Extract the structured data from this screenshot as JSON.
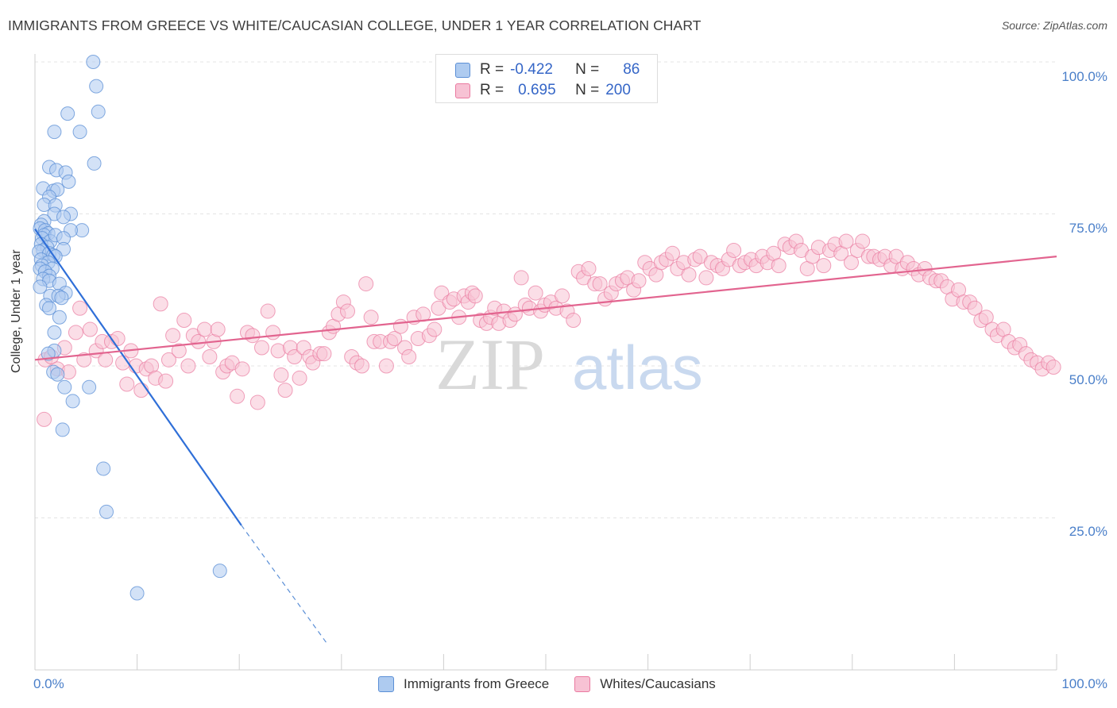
{
  "title": "IMMIGRANTS FROM GREECE VS WHITE/CAUCASIAN COLLEGE, UNDER 1 YEAR CORRELATION CHART",
  "source": "Source: ZipAtlas.com",
  "watermark": {
    "zip": "ZIP",
    "atlas": "atlas"
  },
  "colors": {
    "blue": "#5b8fd6",
    "blue_fill": "#aecbf0",
    "pink": "#ea7aa0",
    "pink_fill": "#f7c2d4",
    "tick_text": "#4a7fc9"
  },
  "stats": {
    "row1": {
      "r_label": "R =",
      "r_value": "-0.422",
      "n_label": "N =",
      "n_value": "86"
    },
    "row2": {
      "r_label": "R =",
      "r_value": "0.695",
      "n_label": "N =",
      "n_value": "200"
    }
  },
  "legend": {
    "series1": "Immigrants from Greece",
    "series2": "Whites/Caucasians"
  },
  "chart_data": {
    "type": "scatter",
    "title": "IMMIGRANTS FROM GREECE VS WHITE/CAUCASIAN COLLEGE, UNDER 1 YEAR CORRELATION CHART",
    "xlabel": "",
    "ylabel": "College, Under 1 year",
    "xlim": [
      0,
      100
    ],
    "ylim": [
      0,
      100
    ],
    "x_ticks": [
      "0.0%",
      "100.0%"
    ],
    "y_ticks": [
      "100.0%",
      "75.0%",
      "50.0%",
      "25.0%"
    ],
    "y_tick_values": [
      100,
      75,
      50,
      25
    ],
    "grid": true,
    "legend_position": "bottom",
    "series": [
      {
        "name": "Immigrants from Greece",
        "color": "#5b8fd6",
        "r": -0.422,
        "n": 86,
        "trend": {
          "x": [
            0,
            20.2,
            28.6
          ],
          "y": [
            72.5,
            23.8,
            4.3
          ],
          "solid_until_x": 20.2
        },
        "points": [
          [
            5.7,
            100
          ],
          [
            6.0,
            96.0
          ],
          [
            6.2,
            91.8
          ],
          [
            3.2,
            91.5
          ],
          [
            1.9,
            88.5
          ],
          [
            4.4,
            88.5
          ],
          [
            5.8,
            83.3
          ],
          [
            1.4,
            82.7
          ],
          [
            2.1,
            82.2
          ],
          [
            3.0,
            81.8
          ],
          [
            3.3,
            80.3
          ],
          [
            0.8,
            79.2
          ],
          [
            1.8,
            78.8
          ],
          [
            2.2,
            79.0
          ],
          [
            1.4,
            77.8
          ],
          [
            0.9,
            76.5
          ],
          [
            2.0,
            76.4
          ],
          [
            1.9,
            75.0
          ],
          [
            3.5,
            75.0
          ],
          [
            2.8,
            74.5
          ],
          [
            0.9,
            73.8
          ],
          [
            0.6,
            73.2
          ],
          [
            0.5,
            72.6
          ],
          [
            1.0,
            72.3
          ],
          [
            1.3,
            71.8
          ],
          [
            0.9,
            71.5
          ],
          [
            4.6,
            72.3
          ],
          [
            3.5,
            72.3
          ],
          [
            0.7,
            71.0
          ],
          [
            1.5,
            70.5
          ],
          [
            2.0,
            71.5
          ],
          [
            2.8,
            71.0
          ],
          [
            0.6,
            70.0
          ],
          [
            1.2,
            69.5
          ],
          [
            0.8,
            69.0
          ],
          [
            0.4,
            68.8
          ],
          [
            2.8,
            69.2
          ],
          [
            1.4,
            68.5
          ],
          [
            1.8,
            68.2
          ],
          [
            2.0,
            68.0
          ],
          [
            0.6,
            67.5
          ],
          [
            1.3,
            67.0
          ],
          [
            0.7,
            66.5
          ],
          [
            0.5,
            66.0
          ],
          [
            1.7,
            66.0
          ],
          [
            1.0,
            65.5
          ],
          [
            1.4,
            64.8
          ],
          [
            0.8,
            64.3
          ],
          [
            1.4,
            64.0
          ],
          [
            2.4,
            63.5
          ],
          [
            0.5,
            63.0
          ],
          [
            3.0,
            62.0
          ],
          [
            1.5,
            61.5
          ],
          [
            2.3,
            61.5
          ],
          [
            2.6,
            61.2
          ],
          [
            1.1,
            60.0
          ],
          [
            1.4,
            59.5
          ],
          [
            2.4,
            58.0
          ],
          [
            1.9,
            55.5
          ],
          [
            1.9,
            52.5
          ],
          [
            1.3,
            52.0
          ],
          [
            1.8,
            49.0
          ],
          [
            2.2,
            48.6
          ],
          [
            2.9,
            46.5
          ],
          [
            5.3,
            46.5
          ],
          [
            3.7,
            44.2
          ],
          [
            2.7,
            39.5
          ],
          [
            6.7,
            33.1
          ],
          [
            7.0,
            26.0
          ],
          [
            18.1,
            16.3
          ],
          [
            10.0,
            12.6
          ]
        ]
      },
      {
        "name": "Whites/Caucasians",
        "color": "#ea7aa0",
        "r": 0.695,
        "n": 200,
        "trend": {
          "x": [
            0,
            100
          ],
          "y": [
            51.0,
            68.0
          ]
        },
        "points": [
          [
            0.9,
            41.2
          ],
          [
            1.0,
            51.0
          ],
          [
            1.6,
            51.5
          ],
          [
            2.2,
            49.5
          ],
          [
            2.9,
            53.0
          ],
          [
            3.3,
            49.0
          ],
          [
            4.0,
            55.5
          ],
          [
            4.4,
            59.5
          ],
          [
            4.8,
            51.0
          ],
          [
            5.4,
            56.0
          ],
          [
            6.0,
            52.5
          ],
          [
            6.6,
            54.0
          ],
          [
            6.9,
            51.0
          ],
          [
            7.5,
            54.0
          ],
          [
            8.1,
            54.5
          ],
          [
            8.6,
            50.5
          ],
          [
            9.0,
            47.0
          ],
          [
            9.4,
            52.5
          ],
          [
            9.9,
            50.0
          ],
          [
            10.4,
            46.0
          ],
          [
            10.9,
            49.5
          ],
          [
            11.4,
            50.0
          ],
          [
            11.8,
            48.0
          ],
          [
            12.3,
            60.2
          ],
          [
            12.8,
            47.5
          ],
          [
            13.1,
            51.0
          ],
          [
            13.5,
            55.0
          ],
          [
            14.1,
            52.5
          ],
          [
            14.6,
            57.5
          ],
          [
            15.0,
            50.0
          ],
          [
            15.5,
            55.0
          ],
          [
            16.0,
            54.0
          ],
          [
            16.6,
            56.0
          ],
          [
            17.1,
            51.5
          ],
          [
            17.5,
            54.0
          ],
          [
            17.9,
            56.0
          ],
          [
            18.4,
            49.0
          ],
          [
            18.8,
            50.0
          ],
          [
            19.3,
            50.5
          ],
          [
            19.8,
            45.0
          ],
          [
            20.3,
            49.5
          ],
          [
            20.8,
            55.5
          ],
          [
            21.3,
            55.0
          ],
          [
            21.8,
            44.0
          ],
          [
            22.2,
            53.0
          ],
          [
            22.8,
            59.0
          ],
          [
            23.3,
            55.5
          ],
          [
            23.8,
            52.5
          ],
          [
            24.1,
            48.5
          ],
          [
            24.5,
            46.0
          ],
          [
            25.0,
            53.0
          ],
          [
            25.4,
            51.5
          ],
          [
            25.9,
            48.0
          ],
          [
            26.3,
            53.0
          ],
          [
            26.9,
            51.5
          ],
          [
            27.2,
            50.5
          ],
          [
            27.9,
            52.0
          ],
          [
            28.3,
            52.0
          ],
          [
            28.8,
            55.5
          ],
          [
            29.2,
            56.5
          ],
          [
            29.7,
            58.5
          ],
          [
            30.2,
            60.5
          ],
          [
            30.6,
            59.0
          ],
          [
            31.0,
            51.5
          ],
          [
            31.5,
            50.5
          ],
          [
            32.0,
            50.0
          ],
          [
            32.4,
            63.5
          ],
          [
            32.9,
            58.0
          ],
          [
            33.2,
            54.0
          ],
          [
            33.8,
            54.0
          ],
          [
            34.4,
            50.0
          ],
          [
            34.8,
            54.0
          ],
          [
            35.2,
            54.5
          ],
          [
            35.8,
            56.5
          ],
          [
            36.2,
            53.0
          ],
          [
            36.6,
            51.5
          ],
          [
            37.1,
            58.0
          ],
          [
            37.5,
            54.5
          ],
          [
            38.0,
            58.5
          ],
          [
            38.6,
            55.0
          ],
          [
            39.1,
            56.0
          ],
          [
            39.5,
            59.5
          ],
          [
            39.8,
            62.0
          ],
          [
            40.6,
            60.5
          ],
          [
            41.0,
            61.0
          ],
          [
            41.5,
            58.0
          ],
          [
            42.0,
            61.5
          ],
          [
            42.4,
            60.5
          ],
          [
            42.8,
            62.0
          ],
          [
            43.1,
            61.5
          ],
          [
            43.6,
            57.5
          ],
          [
            44.2,
            57.0
          ],
          [
            44.6,
            58.0
          ],
          [
            45.0,
            59.5
          ],
          [
            45.4,
            57.0
          ],
          [
            45.9,
            59.0
          ],
          [
            46.5,
            57.5
          ],
          [
            47.0,
            58.5
          ],
          [
            47.6,
            64.5
          ],
          [
            48.0,
            60.0
          ],
          [
            48.4,
            59.5
          ],
          [
            49.0,
            62.0
          ],
          [
            49.5,
            59.0
          ],
          [
            49.9,
            60.0
          ],
          [
            50.5,
            60.5
          ],
          [
            51.0,
            59.5
          ],
          [
            51.6,
            61.5
          ],
          [
            52.1,
            59.0
          ],
          [
            52.7,
            57.5
          ],
          [
            53.2,
            65.5
          ],
          [
            53.7,
            64.5
          ],
          [
            54.2,
            66.0
          ],
          [
            54.8,
            63.5
          ],
          [
            55.3,
            63.5
          ],
          [
            55.8,
            61.0
          ],
          [
            56.4,
            62.0
          ],
          [
            56.9,
            63.5
          ],
          [
            57.5,
            64.0
          ],
          [
            58.0,
            64.5
          ],
          [
            58.6,
            62.5
          ],
          [
            59.1,
            64.0
          ],
          [
            59.7,
            67.0
          ],
          [
            60.2,
            66.0
          ],
          [
            60.8,
            65.0
          ],
          [
            61.3,
            67.0
          ],
          [
            61.8,
            67.5
          ],
          [
            62.4,
            68.5
          ],
          [
            62.9,
            66.0
          ],
          [
            63.5,
            67.0
          ],
          [
            64.0,
            65.0
          ],
          [
            64.6,
            67.5
          ],
          [
            65.1,
            68.0
          ],
          [
            65.7,
            64.5
          ],
          [
            66.2,
            67.0
          ],
          [
            66.8,
            66.5
          ],
          [
            67.3,
            66.0
          ],
          [
            67.9,
            67.5
          ],
          [
            68.4,
            69.0
          ],
          [
            69.0,
            66.5
          ],
          [
            69.5,
            67.0
          ],
          [
            70.1,
            67.5
          ],
          [
            70.6,
            66.5
          ],
          [
            71.2,
            68.0
          ],
          [
            71.7,
            67.0
          ],
          [
            72.3,
            68.5
          ],
          [
            72.8,
            66.5
          ],
          [
            73.4,
            70.0
          ],
          [
            73.9,
            69.5
          ],
          [
            74.5,
            70.5
          ],
          [
            75.0,
            69.0
          ],
          [
            75.6,
            66.0
          ],
          [
            76.1,
            68.0
          ],
          [
            76.7,
            69.5
          ],
          [
            77.2,
            66.5
          ],
          [
            77.8,
            69.0
          ],
          [
            78.3,
            70.0
          ],
          [
            78.9,
            68.5
          ],
          [
            79.4,
            70.5
          ],
          [
            79.9,
            67.0
          ],
          [
            80.5,
            69.0
          ],
          [
            81.0,
            70.5
          ],
          [
            81.6,
            68.0
          ],
          [
            82.1,
            68.0
          ],
          [
            82.7,
            67.5
          ],
          [
            83.2,
            68.0
          ],
          [
            83.8,
            66.5
          ],
          [
            84.3,
            68.0
          ],
          [
            84.9,
            66.0
          ],
          [
            85.4,
            67.0
          ],
          [
            86.0,
            66.0
          ],
          [
            86.5,
            65.0
          ],
          [
            87.1,
            66.0
          ],
          [
            87.6,
            64.5
          ],
          [
            88.2,
            64.0
          ],
          [
            88.7,
            64.0
          ],
          [
            89.3,
            63.0
          ],
          [
            89.8,
            61.0
          ],
          [
            90.4,
            62.5
          ],
          [
            90.9,
            60.5
          ],
          [
            91.5,
            60.5
          ],
          [
            92.0,
            59.5
          ],
          [
            92.6,
            57.5
          ],
          [
            93.1,
            58.0
          ],
          [
            93.7,
            56.0
          ],
          [
            94.2,
            55.0
          ],
          [
            94.8,
            56.0
          ],
          [
            95.3,
            54.0
          ],
          [
            95.9,
            53.0
          ],
          [
            96.4,
            53.5
          ],
          [
            97.0,
            52.0
          ],
          [
            97.5,
            51.0
          ],
          [
            98.1,
            50.5
          ],
          [
            98.6,
            49.5
          ],
          [
            99.2,
            50.5
          ],
          [
            99.7,
            49.8
          ]
        ]
      }
    ]
  }
}
